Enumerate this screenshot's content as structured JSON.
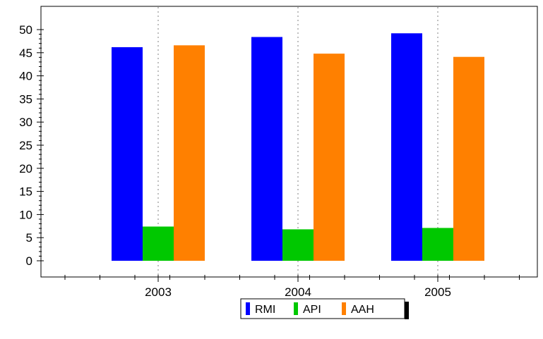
{
  "chart_data": {
    "type": "bar",
    "title": "",
    "xlabel": "",
    "ylabel": "",
    "categories": [
      "2003",
      "2004",
      "2005"
    ],
    "series": [
      {
        "name": "RMI",
        "color": "#0000ff",
        "values": [
          46.2,
          48.4,
          49.2
        ]
      },
      {
        "name": "API",
        "color": "#00c800",
        "values": [
          7.4,
          6.8,
          7.1
        ]
      },
      {
        "name": "AAH",
        "color": "#ff8000",
        "values": [
          46.6,
          44.8,
          44.1
        ]
      }
    ],
    "ylim": [
      0,
      50
    ],
    "y_ticks": [
      "0",
      "5",
      "10",
      "15",
      "20",
      "25",
      "30",
      "35",
      "40",
      "45",
      "50"
    ],
    "grid": "vertical dotted lines at categories",
    "legend_position": "bottom-center"
  }
}
